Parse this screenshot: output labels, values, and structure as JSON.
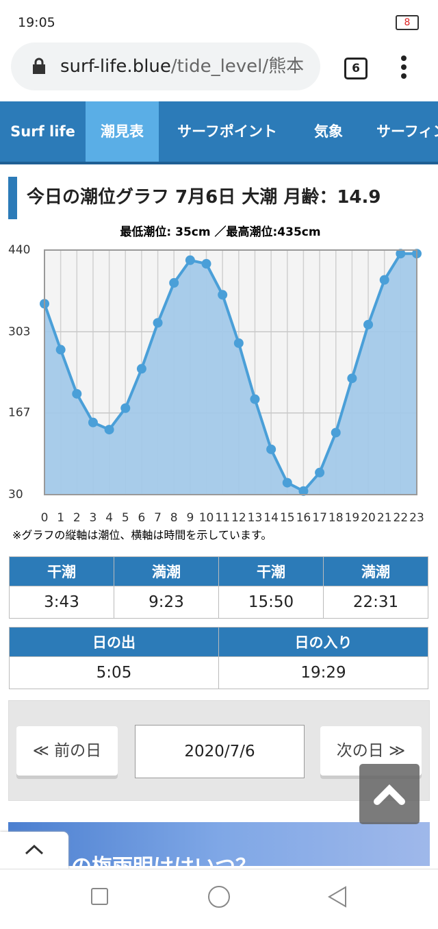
{
  "status_bar": {
    "time": "19:05",
    "battery": "8"
  },
  "browser": {
    "url_host": "surf-life.blue",
    "url_path": "/tide_level/熊本",
    "tab_count": "6"
  },
  "nav": [
    "Surf life",
    "潮見表",
    "サーフポイント",
    "気象",
    "サーフィン"
  ],
  "chart_data": {
    "type": "area",
    "title": "今日の潮位グラフ 7月6日 大潮 月齢：14.9",
    "subtitle": "最低潮位: 35cm ／最高潮位:435cm",
    "note": "※グラフの縦軸は潮位、横軸は時間を示しています。",
    "x": [
      0,
      1,
      2,
      3,
      4,
      5,
      6,
      7,
      8,
      9,
      10,
      11,
      12,
      13,
      14,
      15,
      16,
      17,
      18,
      19,
      20,
      21,
      22,
      23
    ],
    "values": [
      350,
      273,
      199,
      151,
      139,
      175,
      241,
      318,
      385,
      423,
      417,
      365,
      284,
      190,
      106,
      50,
      36,
      67,
      134,
      225,
      315,
      390,
      434,
      434
    ],
    "color": "#4a9fd8",
    "fill": "#a3c9e9",
    "xlim": [
      0,
      23
    ],
    "xticks": [
      0,
      1,
      2,
      3,
      4,
      5,
      6,
      7,
      8,
      9,
      10,
      11,
      12,
      13,
      14,
      15,
      16,
      17,
      18,
      19,
      20,
      21,
      22,
      23
    ],
    "ylim": [
      30,
      440
    ],
    "yticks": [
      30,
      167,
      303,
      440
    ],
    "grid": true
  },
  "tide_table": {
    "header": [
      "干潮",
      "満潮",
      "干潮",
      "満潮"
    ],
    "row": [
      "3:43",
      "9:23",
      "15:50",
      "22:31"
    ]
  },
  "sun_table": {
    "header": [
      "日の出",
      "日の入り"
    ],
    "row": [
      "5:05",
      "19:29"
    ]
  },
  "date_nav": {
    "prev": "≪ 前の日",
    "date": "2020/7/6",
    "next": "次の日 ≫"
  },
  "banner_text": "の梅雨明けはいつ？"
}
